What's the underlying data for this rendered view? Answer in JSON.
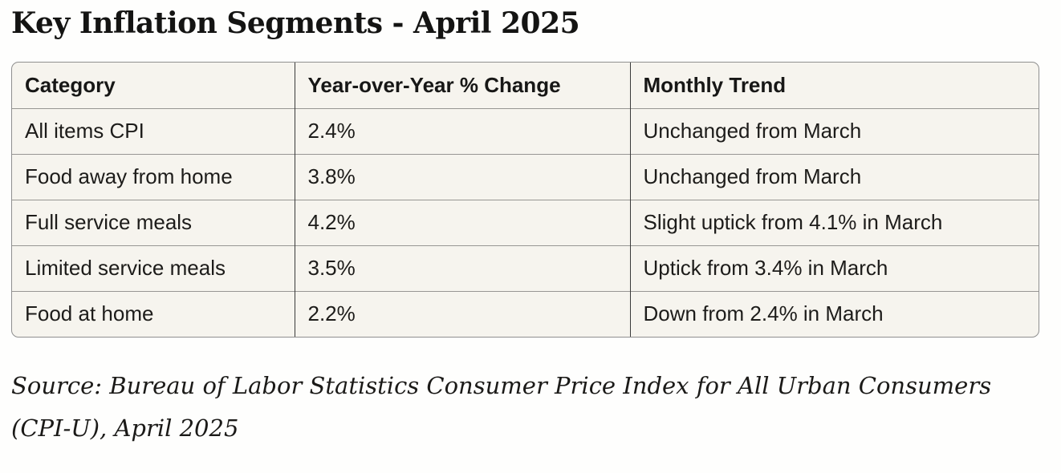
{
  "title": "Key Inflation Segments - April 2025",
  "table": {
    "columns": [
      "Category",
      "Year-over-Year % Change",
      "Monthly Trend"
    ],
    "rows": [
      {
        "category": "All items CPI",
        "yoy_change": "2.4%",
        "monthly_trend": "Unchanged from March"
      },
      {
        "category": "Food away from home",
        "yoy_change": "3.8%",
        "monthly_trend": "Unchanged from March"
      },
      {
        "category": "Full service meals",
        "yoy_change": "4.2%",
        "monthly_trend": "Slight uptick from 4.1% in March"
      },
      {
        "category": "Limited service meals",
        "yoy_change": "3.5%",
        "monthly_trend": "Uptick from 3.4% in March"
      },
      {
        "category": "Food at home",
        "yoy_change": "2.2%",
        "monthly_trend": "Down from 2.4% in March"
      }
    ]
  },
  "source_note": "Source: Bureau of Labor Statistics Consumer Price Index for All Urban Consumers (CPI-U), April 2025",
  "colors": {
    "page_background": "#fefefd",
    "table_background": "#f6f4ee",
    "outer_border": "#8f8f8f",
    "row_divider": "#979693",
    "column_divider": "#3a3a3a",
    "text": "#1d1c1a"
  },
  "chart_data": {
    "type": "table",
    "title": "Key Inflation Segments - April 2025",
    "columns": [
      "Category",
      "Year-over-Year % Change",
      "Monthly Trend"
    ],
    "rows": [
      [
        "All items CPI",
        "2.4%",
        "Unchanged from March"
      ],
      [
        "Food away from home",
        "3.8%",
        "Unchanged from March"
      ],
      [
        "Full service meals",
        "4.2%",
        "Slight uptick from 4.1% in March"
      ],
      [
        "Limited service meals",
        "3.5%",
        "Uptick from 3.4% in March"
      ],
      [
        "Food at home",
        "2.2%",
        "Down from 2.4% in March"
      ]
    ],
    "yoy_change_values_pct": [
      2.4,
      3.8,
      4.2,
      3.5,
      2.2
    ],
    "march_comparison_values_pct": [
      2.4,
      3.8,
      4.1,
      3.4,
      2.4
    ],
    "source": "Source: Bureau of Labor Statistics Consumer Price Index for All Urban Consumers (CPI-U), April 2025"
  }
}
